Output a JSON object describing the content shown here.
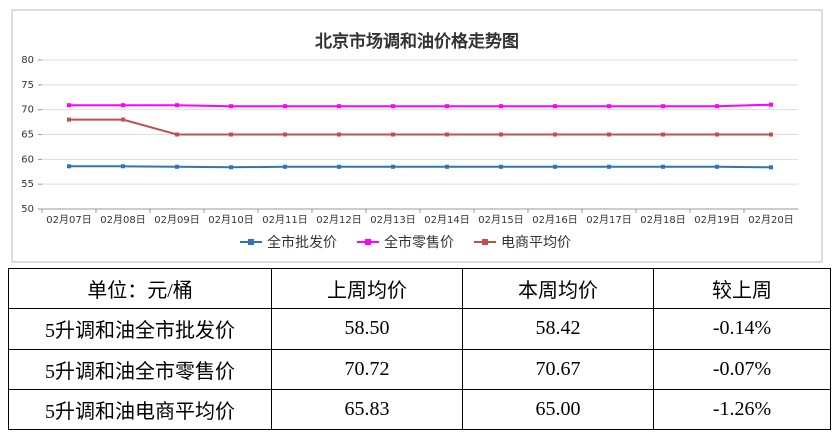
{
  "chart_data": {
    "type": "line",
    "title": "北京市场调和油价格走势图",
    "categories": [
      "02月07日",
      "02月08日",
      "02月09日",
      "02月10日",
      "02月11日",
      "02月12日",
      "02月13日",
      "02月14日",
      "02月15日",
      "02月16日",
      "02月17日",
      "02月18日",
      "02月19日",
      "02月20日"
    ],
    "series": [
      {
        "name": "全市批发价",
        "color": "#2e75b6",
        "values": [
          58.6,
          58.6,
          58.5,
          58.4,
          58.5,
          58.5,
          58.5,
          58.5,
          58.5,
          58.5,
          58.5,
          58.5,
          58.5,
          58.4
        ]
      },
      {
        "name": "全市零售价",
        "color": "#ff00ff",
        "values": [
          70.9,
          70.9,
          70.9,
          70.7,
          70.7,
          70.7,
          70.7,
          70.7,
          70.7,
          70.7,
          70.7,
          70.7,
          70.7,
          71.0
        ]
      },
      {
        "name": "电商平均价",
        "color": "#c0504d",
        "values": [
          68,
          68,
          65,
          65,
          65,
          65,
          65,
          65,
          65,
          65,
          65,
          65,
          65,
          65
        ]
      }
    ],
    "ylim": [
      50,
      80
    ],
    "yticks": [
      50,
      55,
      60,
      65,
      70,
      75,
      80
    ],
    "grid": true,
    "legend": "bottom"
  },
  "table": {
    "header": [
      "单位：元/桶",
      "上周均价",
      "本周均价",
      "较上周"
    ],
    "rows": [
      [
        "5升调和油全市批发价",
        "58.50",
        "58.42",
        "-0.14%"
      ],
      [
        "5升调和油全市零售价",
        "70.72",
        "70.67",
        "-0.07%"
      ],
      [
        "5升调和油电商平均价",
        "65.83",
        "65.00",
        "-1.26%"
      ]
    ]
  }
}
